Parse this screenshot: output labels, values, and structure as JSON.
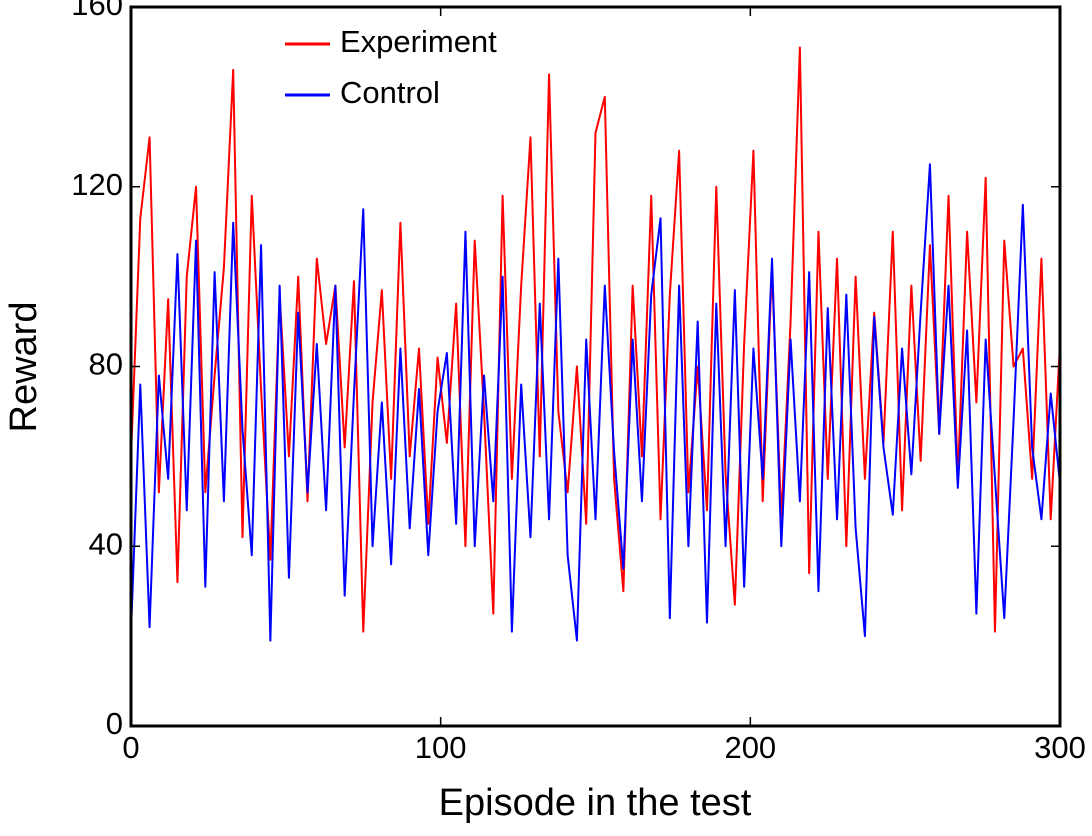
{
  "chart_data": {
    "type": "line",
    "xlabel": "Episode in the test",
    "ylabel": "Reward",
    "x": [
      0,
      3,
      6,
      9,
      12,
      15,
      18,
      21,
      24,
      27,
      30,
      33,
      36,
      39,
      42,
      45,
      48,
      51,
      54,
      57,
      60,
      63,
      66,
      69,
      72,
      75,
      78,
      81,
      84,
      87,
      90,
      93,
      96,
      99,
      102,
      105,
      108,
      111,
      114,
      117,
      120,
      123,
      126,
      129,
      132,
      135,
      138,
      141,
      144,
      147,
      150,
      153,
      156,
      159,
      162,
      165,
      168,
      171,
      174,
      177,
      180,
      183,
      186,
      189,
      192,
      195,
      198,
      201,
      204,
      207,
      210,
      213,
      216,
      219,
      222,
      225,
      228,
      231,
      234,
      237,
      240,
      243,
      246,
      249,
      252,
      255,
      258,
      261,
      264,
      267,
      270,
      273,
      276,
      279,
      282,
      285,
      288,
      291,
      294,
      297,
      300
    ],
    "series": [
      {
        "name": "Experiment",
        "color": "#ff0000",
        "values": [
          60,
          113,
          131,
          52,
          95,
          32,
          100,
          120,
          52,
          78,
          102,
          146,
          42,
          118,
          75,
          37,
          96,
          60,
          100,
          50,
          104,
          85,
          98,
          62,
          99,
          21,
          72,
          97,
          55,
          112,
          60,
          84,
          45,
          82,
          63,
          94,
          40,
          108,
          70,
          25,
          118,
          55,
          98,
          131,
          60,
          145,
          70,
          52,
          80,
          45,
          132,
          140,
          55,
          30,
          98,
          60,
          118,
          46,
          96,
          128,
          52,
          80,
          48,
          120,
          56,
          27,
          85,
          128,
          50,
          102,
          46,
          90,
          151,
          34,
          110,
          55,
          104,
          40,
          100,
          55,
          92,
          63,
          110,
          48,
          98,
          59,
          107,
          65,
          118,
          55,
          110,
          72,
          122,
          21,
          108,
          80,
          84,
          55,
          104,
          46,
          85
        ]
      },
      {
        "name": "Control",
        "color": "#0000ff",
        "values": [
          21,
          76,
          22,
          78,
          55,
          105,
          48,
          108,
          31,
          101,
          50,
          112,
          66,
          38,
          107,
          19,
          98,
          33,
          92,
          52,
          85,
          48,
          98,
          29,
          74,
          115,
          40,
          72,
          36,
          84,
          44,
          75,
          38,
          70,
          83,
          45,
          110,
          40,
          78,
          50,
          100,
          21,
          76,
          42,
          94,
          46,
          104,
          38,
          19,
          86,
          46,
          98,
          61,
          35,
          86,
          50,
          96,
          113,
          24,
          98,
          40,
          90,
          23,
          94,
          40,
          97,
          31,
          84,
          55,
          104,
          40,
          86,
          50,
          101,
          30,
          93,
          46,
          96,
          44,
          20,
          91,
          62,
          47,
          84,
          56,
          92,
          125,
          65,
          98,
          53,
          88,
          25,
          86,
          55,
          24,
          68,
          116,
          62,
          46,
          74,
          54
        ]
      }
    ],
    "xlim": [
      0,
      300
    ],
    "xticks": [
      0,
      100,
      200,
      300
    ],
    "ylim": [
      0,
      160
    ],
    "yticks": [
      0,
      40,
      80,
      120,
      160
    ],
    "legend": "upper-left"
  }
}
